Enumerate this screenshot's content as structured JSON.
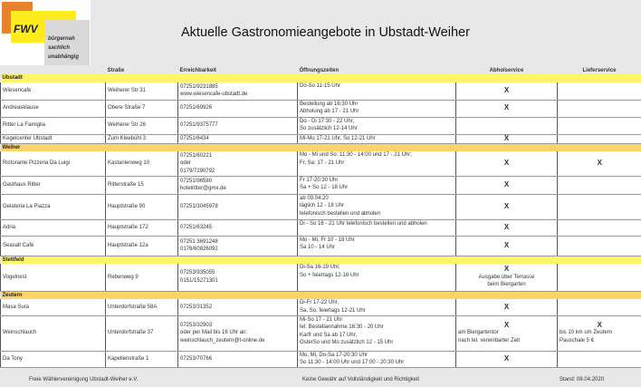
{
  "logo": {
    "brand": "FWV",
    "slogan": [
      "bürgernah",
      "sachlich",
      "unabhängig"
    ]
  },
  "title": "Aktuelle Gastronomieangebote in Ubstadt-Weiher",
  "columns": [
    "",
    "Straße",
    "Erreichbarkeit",
    "Öffnungszeiten",
    "Abholservice",
    "Lieferservice"
  ],
  "colors": {
    "section_yellow": "#fef568",
    "section_orange": "#fdd36c"
  },
  "sections": [
    {
      "name": "Ubstadt",
      "rows": [
        {
          "name": "Wiesencafe",
          "street": "Weiherer Str 31",
          "contact": [
            "07251/9231885",
            "www.wiesencafe-ubstadt.de"
          ],
          "hours": [
            "Do-So 11-15 Uhr"
          ],
          "pickup": "X",
          "pickup_note": [],
          "delivery": "",
          "delivery_note": []
        },
        {
          "name": "Andreasklause",
          "street": "Obere Straße 7",
          "contact": [
            "07251/69926"
          ],
          "hours": [
            "Bestellung ab 16:30 Uhr",
            "Abholung ab 17 - 21 Uhr"
          ],
          "pickup": "X",
          "pickup_note": [],
          "delivery": "",
          "delivery_note": []
        },
        {
          "name": "Ritter La Famiglia",
          "street": "Weiherer Str 26",
          "contact": [
            "07251/9375777"
          ],
          "hours": [
            "Do - Di 17:30 - 22 Uhr,",
            "So zusätzlich 12-14 Uhr"
          ],
          "pickup": "",
          "pickup_note": [],
          "delivery": "",
          "delivery_note": []
        },
        {
          "name": "Kegelcenter Ubstadt",
          "street": "Zum Kleebühl 3",
          "contact": [
            "07251/6434"
          ],
          "hours": [
            "Mi-Mo 17-21 Uhr, So 12-21 Uhr"
          ],
          "pickup": "X",
          "pickup_note": [],
          "delivery": "",
          "delivery_note": []
        }
      ]
    },
    {
      "name": "Weiher",
      "rows": [
        {
          "name": "Ristorante Pizzeria Da Luigi",
          "street": "Kastanienweg 10",
          "contact": [
            "07251/60221",
            "oder",
            "0179/7290792"
          ],
          "hours": [
            "Mo - Mi und So: 11:30 - 14:00 und 17 - 21 Uhr;",
            "Fr, Sa: 17 - 21 Uhr"
          ],
          "pickup": "X",
          "pickup_note": [],
          "delivery": "X",
          "delivery_note": []
        },
        {
          "name": "Gasthaus Ritter",
          "street": "Ritterstraße 15",
          "contact": [
            "07251/96580",
            "hotelritter@gmx.de"
          ],
          "hours": [
            "Fr 17-20:30 Uhr",
            "Sa + So 12 - 18 Uhr"
          ],
          "pickup": "X",
          "pickup_note": [],
          "delivery": "",
          "delivery_note": []
        },
        {
          "name": "Gelateria La Piazza",
          "street": "Hauptstraße 90",
          "contact": [
            "07251/3045978"
          ],
          "hours": [
            "ab 09.04.20",
            "täglich 12 - 18 Uhr",
            "telefonisch bestellen und abholen"
          ],
          "pickup": "X",
          "pickup_note": [],
          "delivery": "",
          "delivery_note": []
        },
        {
          "name": "Adria",
          "street": "Hauptstraße  172",
          "contact": [
            "07251/63245"
          ],
          "hours": [
            "Di - So 16 - 21 Uhr  telefonisch bestellen und abholen"
          ],
          "pickup": "X",
          "pickup_note": [],
          "delivery": "",
          "delivery_note": []
        },
        {
          "name": "Seasalt Cafe",
          "street": "Hauptstraße 12a",
          "contact": [
            "07251 3691248",
            "0176/60826092"
          ],
          "hours": [
            "Mo - Mi, Fr 10 - 18 Uhr",
            "Sa 10 - 14 Uhr"
          ],
          "pickup": "X",
          "pickup_note": [],
          "delivery": "",
          "delivery_note": []
        }
      ]
    },
    {
      "name": "Stettfeld",
      "rows": [
        {
          "name": "Vogelnest",
          "street": "Rebenweg 9",
          "contact": [
            "07253/935055",
            "0151/15271301"
          ],
          "hours": [
            "Di-Sa 16-19 Uhr,",
            "So + feiertags 12-18 Uhr"
          ],
          "pickup": "X",
          "pickup_note": [
            "Ausgabe über Terrasse",
            "beim Biergarten"
          ],
          "delivery": "",
          "delivery_note": []
        }
      ]
    },
    {
      "name": "Zeutern",
      "rows": [
        {
          "name": "Masa Sura",
          "street": "Unterdorfstraße 58A",
          "contact": [
            "07253/31352"
          ],
          "hours": [
            "Di-Fr 17-22 Uhr,",
            "Sa, So, feiertags 12-21 Uhr"
          ],
          "pickup": "X",
          "pickup_note": [],
          "delivery": "",
          "delivery_note": []
        },
        {
          "name": "Weinschlauch",
          "street": "Unterdorfstraße 37",
          "contact": [
            "07253/32903",
            "oder per Mail bis 16 Uhr an:",
            "weinschlauch_zeutern@t-online.de"
          ],
          "hours": [
            "Mi-So 17 - 21 Uhr",
            "tel. Bestellannahme 16:30 - 20 Uhr",
            "Karfr und Sa ab 17 Uhr,",
            "OsterSo und Mo zusätzlich 12 - 15 Uhr"
          ],
          "pickup": "X",
          "pickup_note": [
            "am Biergartentor",
            "nach tel. vereinbarter Zeit"
          ],
          "delivery": "X",
          "delivery_note": [
            "bis 10 km um Zeutern",
            "Pauschale 5 €"
          ]
        },
        {
          "name": "Da Tony",
          "street": "Kapellenstraße 1",
          "contact": [
            "07253/70766"
          ],
          "hours": [
            "Mo, Mi, Do-Sa 17-20:30 Uhr",
            "So 11:30 - 14:00 Uhr und 17:00 - 20:30 Uhr"
          ],
          "pickup": "X",
          "pickup_note": [],
          "delivery": "",
          "delivery_note": []
        }
      ]
    }
  ],
  "footer": {
    "left": "Freie Wählervereinigung Ubstadt-Weiher e.V.",
    "center": "Keine Gewähr auf Vollständigkeit und Richtigkeit",
    "right": "Stand: 08.04.2020"
  }
}
